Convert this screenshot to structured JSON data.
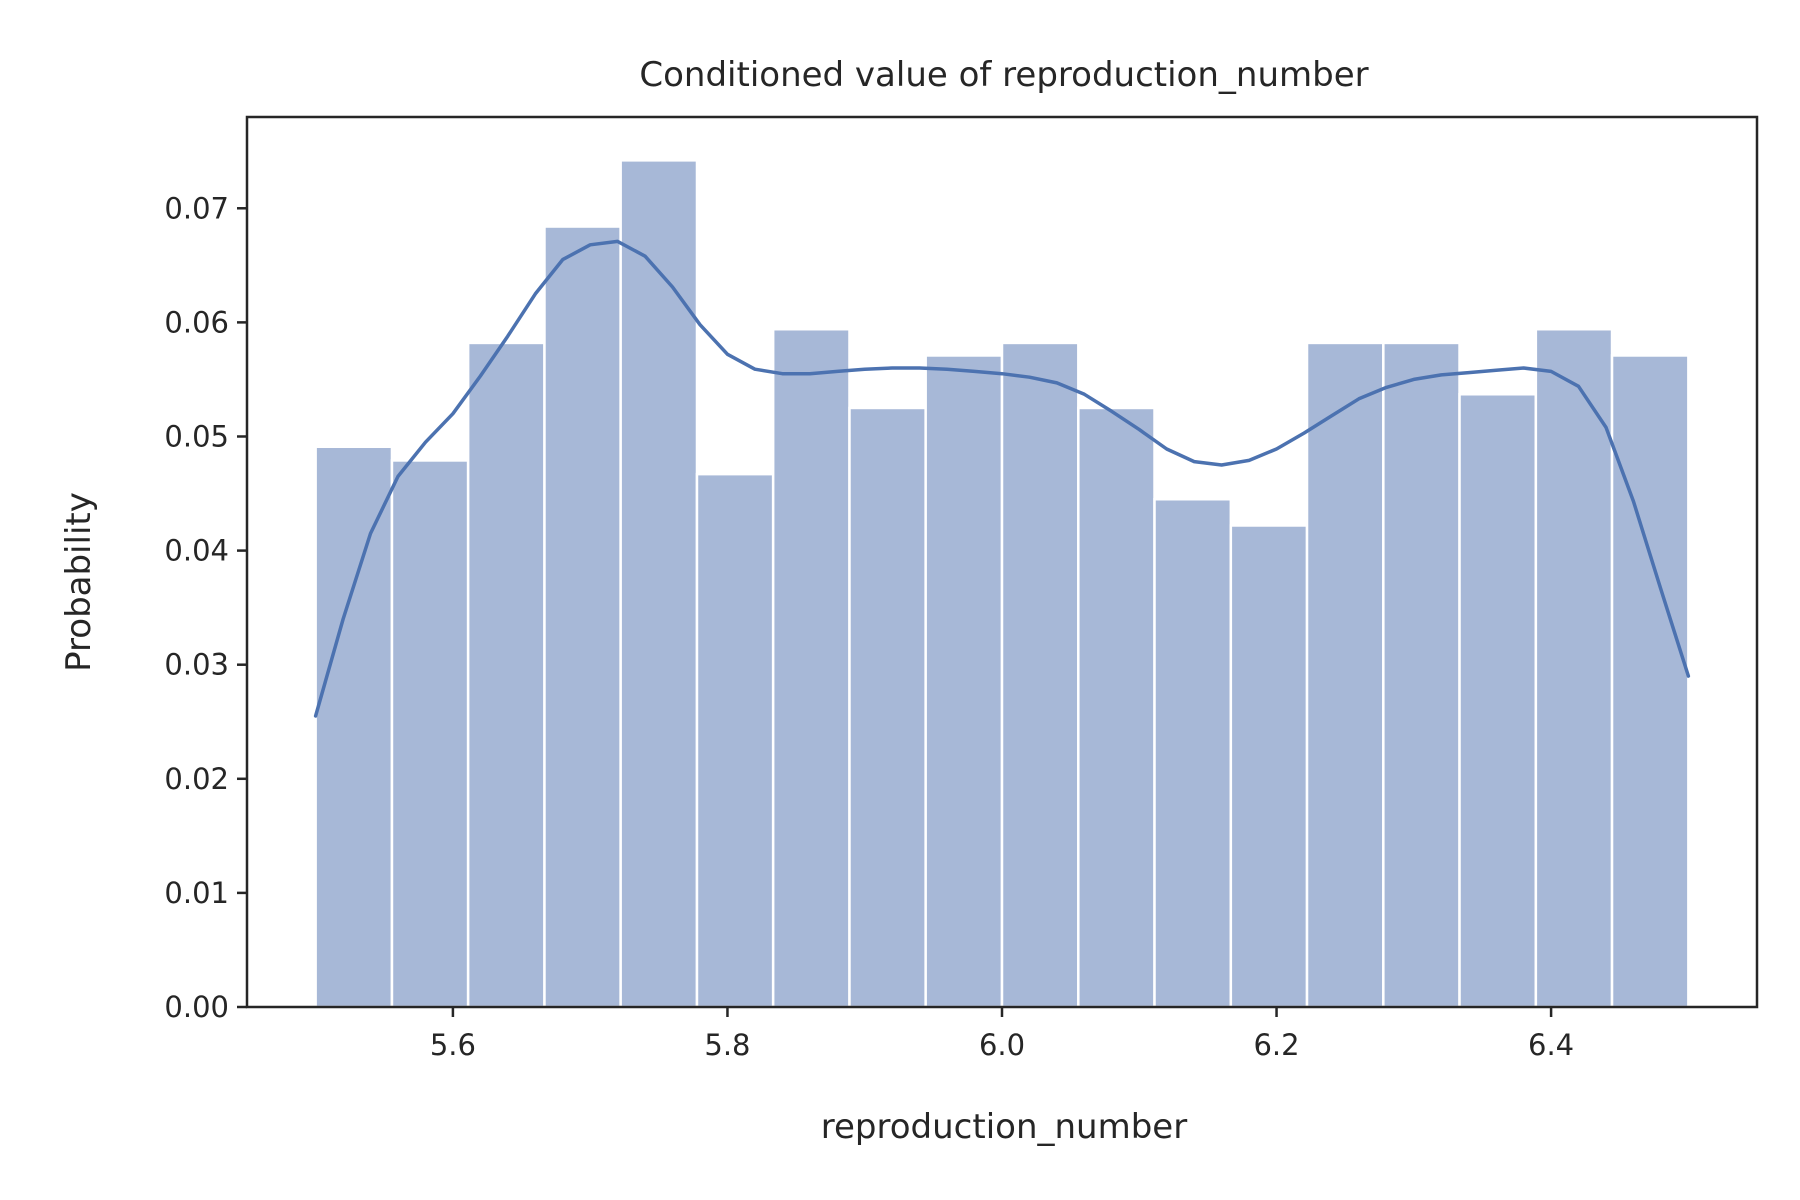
{
  "chart_data": {
    "type": "histogram",
    "title": "Conditioned value of reproduction_number",
    "xlabel": "reproduction_number",
    "ylabel": "Probability",
    "xlim": [
      5.45,
      6.55
    ],
    "ylim": [
      0,
      0.078
    ],
    "x_ticks": [
      "5.6",
      "5.8",
      "6.0",
      "6.2",
      "6.4"
    ],
    "x_tick_values": [
      5.6,
      5.8,
      6.0,
      6.2,
      6.4
    ],
    "y_ticks": [
      "0.00",
      "0.01",
      "0.02",
      "0.03",
      "0.04",
      "0.05",
      "0.06",
      "0.07"
    ],
    "y_tick_values": [
      0,
      0.01,
      0.02,
      0.03,
      0.04,
      0.05,
      0.06,
      0.07
    ],
    "grid": false,
    "bar_color": "#a7b8d7",
    "line_color": "#4c72b0",
    "bins": [
      {
        "start": 5.5,
        "end": 5.5556,
        "value": 0.0491
      },
      {
        "start": 5.5556,
        "end": 5.6111,
        "value": 0.0479
      },
      {
        "start": 5.6111,
        "end": 5.6667,
        "value": 0.0582
      },
      {
        "start": 5.6667,
        "end": 5.7222,
        "value": 0.0684
      },
      {
        "start": 5.7222,
        "end": 5.7778,
        "value": 0.0742
      },
      {
        "start": 5.7778,
        "end": 5.8333,
        "value": 0.0467
      },
      {
        "start": 5.8333,
        "end": 5.8889,
        "value": 0.0594
      },
      {
        "start": 5.8889,
        "end": 5.9444,
        "value": 0.0525
      },
      {
        "start": 5.9444,
        "end": 6.0,
        "value": 0.0571
      },
      {
        "start": 6.0,
        "end": 6.0556,
        "value": 0.0582
      },
      {
        "start": 6.0556,
        "end": 6.1111,
        "value": 0.0525
      },
      {
        "start": 6.1111,
        "end": 6.1667,
        "value": 0.0445
      },
      {
        "start": 6.1667,
        "end": 6.2222,
        "value": 0.0422
      },
      {
        "start": 6.2222,
        "end": 6.2778,
        "value": 0.0582
      },
      {
        "start": 6.2778,
        "end": 6.3333,
        "value": 0.0582
      },
      {
        "start": 6.3333,
        "end": 6.3889,
        "value": 0.0537
      },
      {
        "start": 6.3889,
        "end": 6.4444,
        "value": 0.0594
      },
      {
        "start": 6.4444,
        "end": 6.5,
        "value": 0.0571
      }
    ],
    "kde": {
      "x": [
        5.5,
        5.52,
        5.54,
        5.56,
        5.58,
        5.6,
        5.62,
        5.64,
        5.66,
        5.68,
        5.7,
        5.72,
        5.74,
        5.76,
        5.78,
        5.8,
        5.82,
        5.84,
        5.86,
        5.88,
        5.9,
        5.92,
        5.94,
        5.96,
        5.98,
        6.0,
        6.02,
        6.04,
        6.06,
        6.08,
        6.1,
        6.12,
        6.14,
        6.16,
        6.18,
        6.2,
        6.22,
        6.24,
        6.26,
        6.28,
        6.3,
        6.32,
        6.34,
        6.36,
        6.38,
        6.4,
        6.42,
        6.44,
        6.46,
        6.48,
        6.5
      ],
      "y": [
        0.0255,
        0.034,
        0.0415,
        0.0465,
        0.0495,
        0.052,
        0.0553,
        0.0588,
        0.0625,
        0.0655,
        0.0668,
        0.0671,
        0.0658,
        0.0631,
        0.0598,
        0.0572,
        0.0559,
        0.0555,
        0.0555,
        0.0557,
        0.0559,
        0.056,
        0.056,
        0.0559,
        0.0557,
        0.0555,
        0.0552,
        0.0547,
        0.0537,
        0.0522,
        0.0506,
        0.0489,
        0.0478,
        0.0475,
        0.0479,
        0.0489,
        0.0503,
        0.0518,
        0.0533,
        0.0543,
        0.055,
        0.0554,
        0.0556,
        0.0558,
        0.056,
        0.0557,
        0.0544,
        0.0508,
        0.0443,
        0.0366,
        0.029
      ]
    }
  }
}
